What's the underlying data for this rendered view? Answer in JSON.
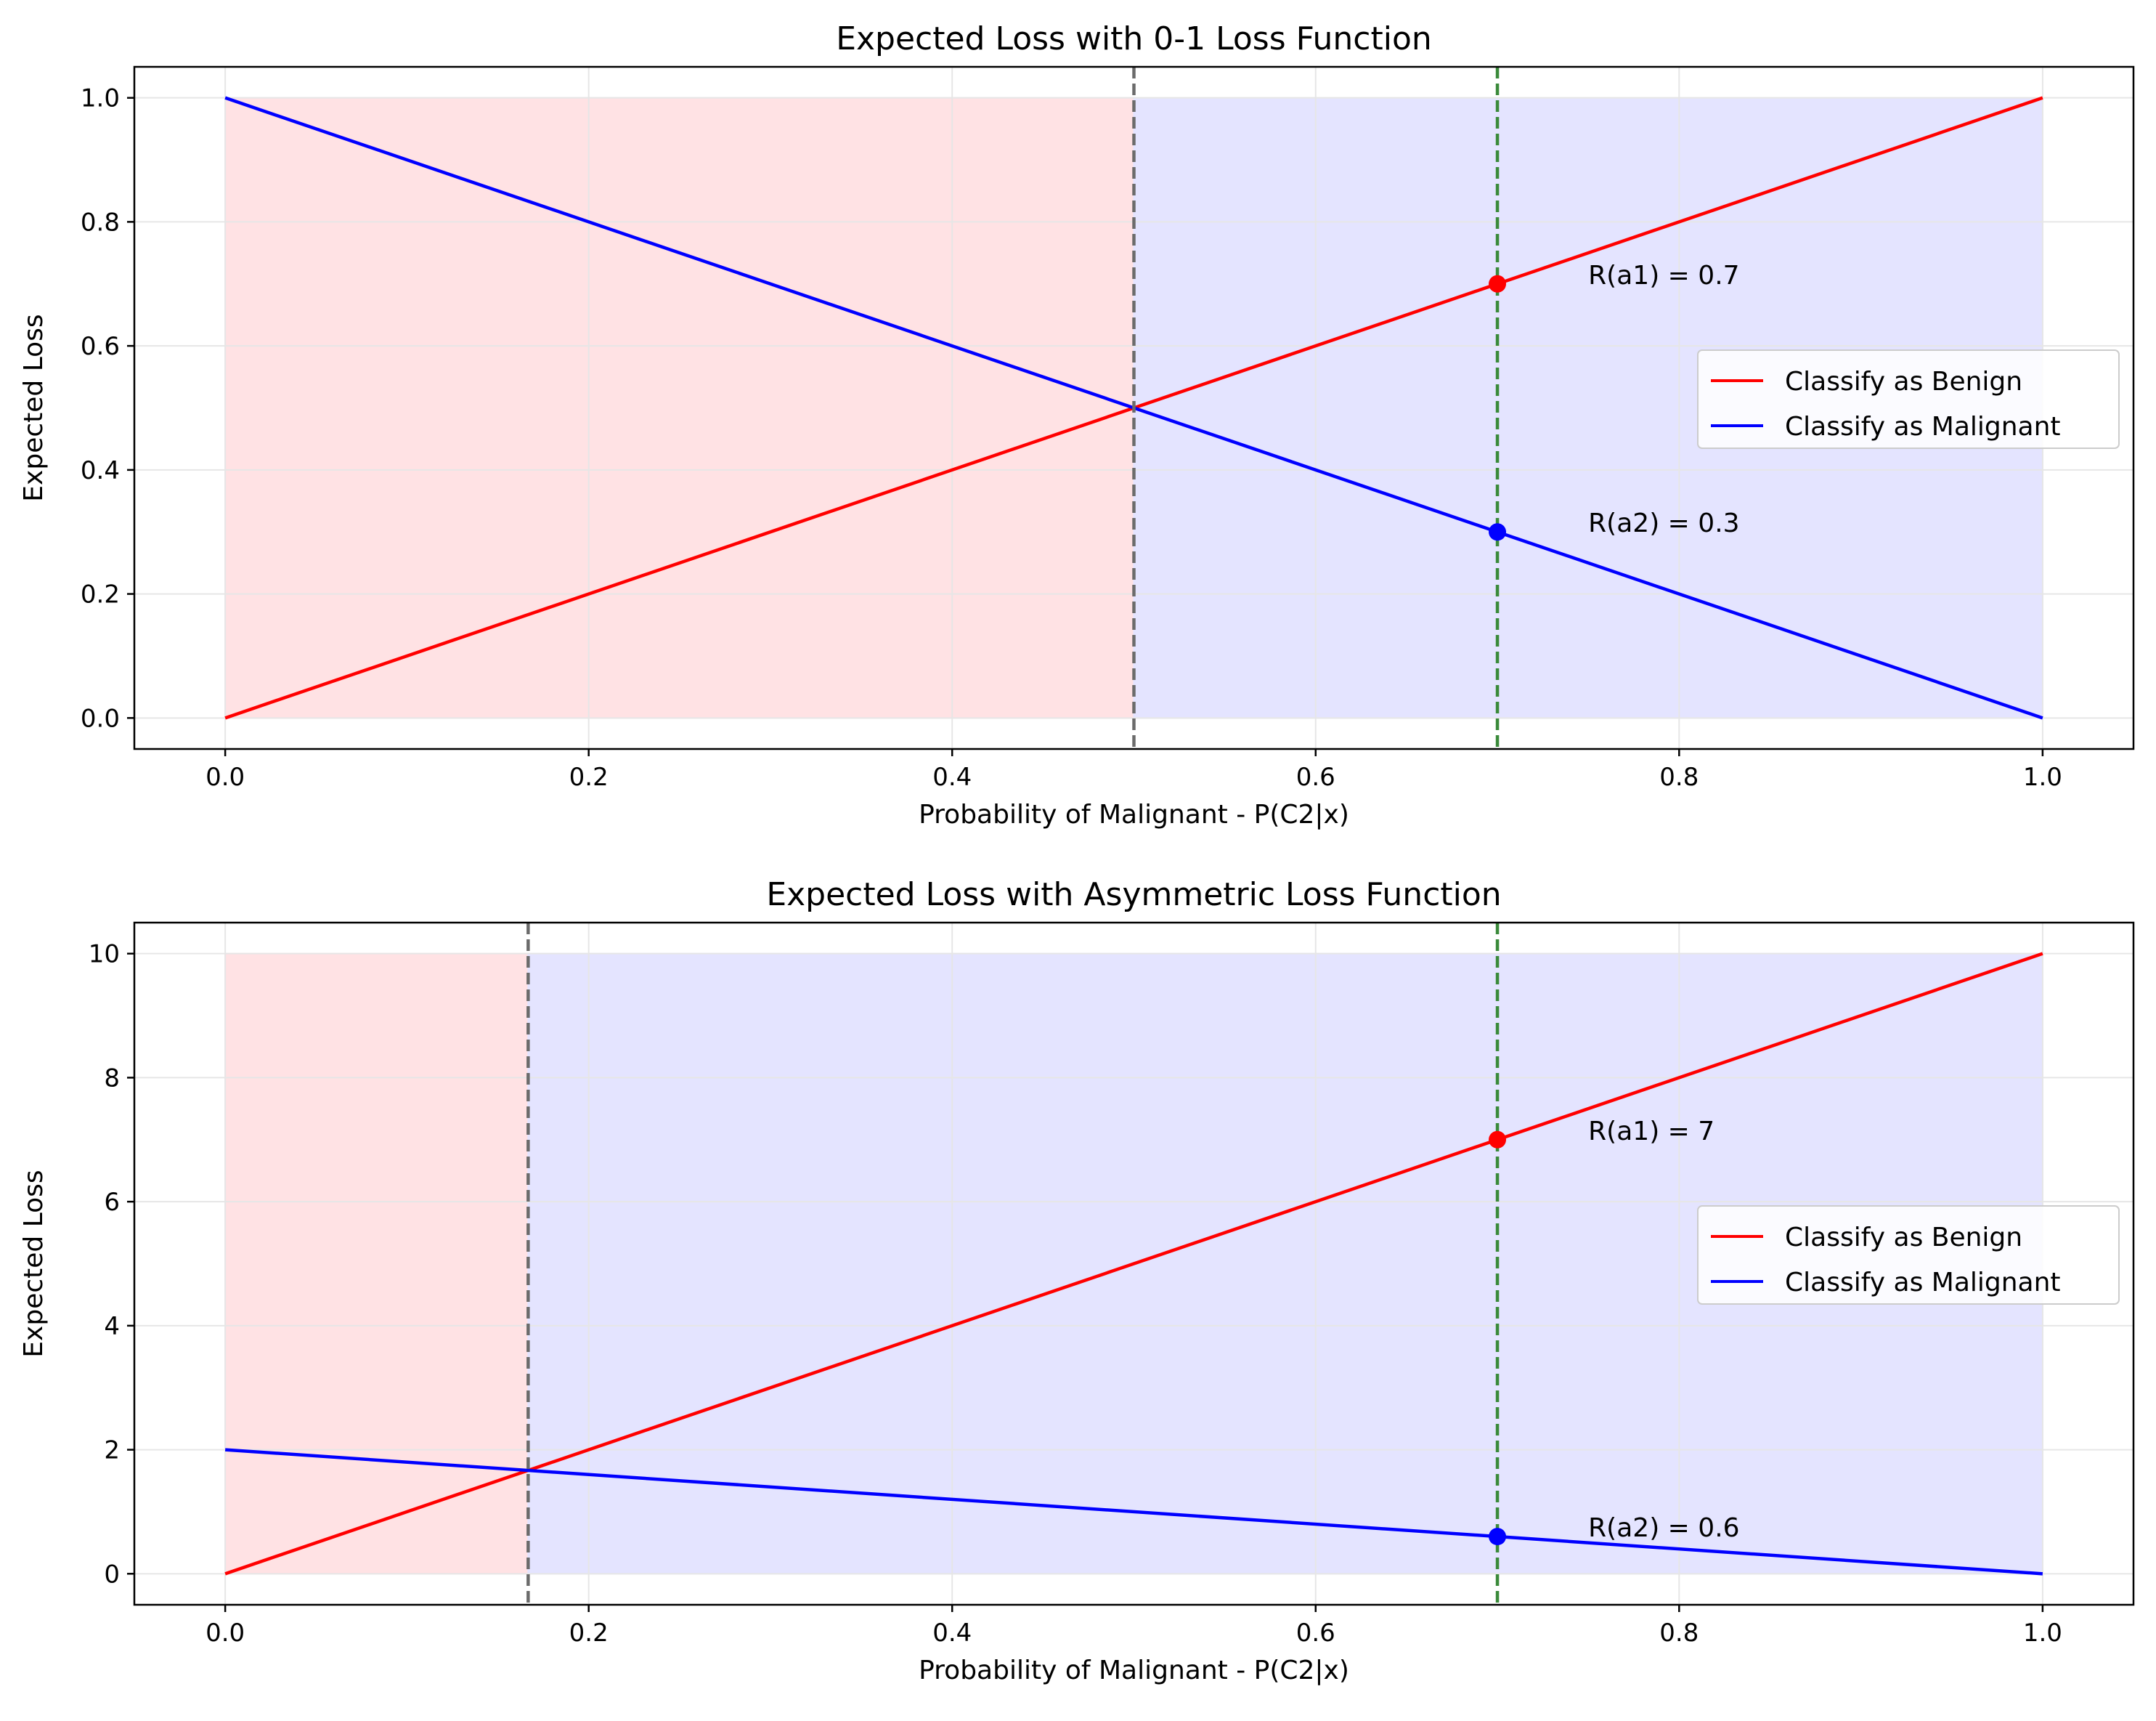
{
  "colors": {
    "benign": "#ff0000",
    "malignant": "#0000ff",
    "region_benign": "#ffe2e4",
    "region_malignant": "#e4e4ff",
    "threshold": "#6b6b6b",
    "current": "#3a8a3a",
    "grid": "#e6e6e6"
  },
  "chart_data": [
    {
      "type": "line",
      "title": "Expected Loss with 0-1 Loss Function",
      "xlabel": "Probability of Malignant - P(C2|x)",
      "ylabel": "Expected Loss",
      "xlim": [
        -0.05,
        1.05
      ],
      "ylim": [
        -0.05,
        1.05
      ],
      "xticks": [
        0.0,
        0.2,
        0.4,
        0.6,
        0.8,
        1.0
      ],
      "xtick_labels": [
        "0.0",
        "0.2",
        "0.4",
        "0.6",
        "0.8",
        "1.0"
      ],
      "yticks": [
        0.0,
        0.2,
        0.4,
        0.6,
        0.8,
        1.0
      ],
      "ytick_labels": [
        "0.0",
        "0.2",
        "0.4",
        "0.6",
        "0.8",
        "1.0"
      ],
      "grid": true,
      "legend_position": "center-right",
      "series": [
        {
          "name": "Classify as Benign",
          "color": "#ff0000",
          "x": [
            0,
            1
          ],
          "y": [
            0,
            1
          ]
        },
        {
          "name": "Classify as Malignant",
          "color": "#0000ff",
          "x": [
            0,
            1
          ],
          "y": [
            1,
            0
          ]
        }
      ],
      "regions": [
        {
          "x0": 0,
          "x1": 0.5,
          "y0": 0,
          "y1": 1,
          "color": "#ffe2e4"
        },
        {
          "x0": 0.5,
          "x1": 1,
          "y0": 0,
          "y1": 1,
          "color": "#e4e4ff"
        }
      ],
      "threshold_x": 0.5,
      "current_x": 0.7,
      "points": [
        {
          "x": 0.7,
          "y": 0.7,
          "color": "#ff0000",
          "label": "R(a1) = 0.7"
        },
        {
          "x": 0.7,
          "y": 0.3,
          "color": "#0000ff",
          "label": "R(a2) = 0.3"
        }
      ]
    },
    {
      "type": "line",
      "title": "Expected Loss with Asymmetric Loss Function",
      "xlabel": "Probability of Malignant - P(C2|x)",
      "ylabel": "Expected Loss",
      "xlim": [
        -0.05,
        1.05
      ],
      "ylim": [
        -0.5,
        10.5
      ],
      "xticks": [
        0.0,
        0.2,
        0.4,
        0.6,
        0.8,
        1.0
      ],
      "xtick_labels": [
        "0.0",
        "0.2",
        "0.4",
        "0.6",
        "0.8",
        "1.0"
      ],
      "yticks": [
        0,
        2,
        4,
        6,
        8,
        10
      ],
      "ytick_labels": [
        "0",
        "2",
        "4",
        "6",
        "8",
        "10"
      ],
      "grid": true,
      "legend_position": "center-right",
      "series": [
        {
          "name": "Classify as Benign",
          "color": "#ff0000",
          "x": [
            0,
            1
          ],
          "y": [
            0,
            10
          ]
        },
        {
          "name": "Classify as Malignant",
          "color": "#0000ff",
          "x": [
            0,
            1
          ],
          "y": [
            2,
            0
          ]
        }
      ],
      "regions": [
        {
          "x0": 0,
          "x1": 0.1667,
          "y0": 0,
          "y1": 10,
          "color": "#ffe2e4"
        },
        {
          "x0": 0.1667,
          "x1": 1,
          "y0": 0,
          "y1": 10,
          "color": "#e4e4ff"
        }
      ],
      "threshold_x": 0.1667,
      "current_x": 0.7,
      "points": [
        {
          "x": 0.7,
          "y": 7,
          "color": "#ff0000",
          "label": "R(a1) = 7"
        },
        {
          "x": 0.7,
          "y": 0.6,
          "color": "#0000ff",
          "label": "R(a2) = 0.6"
        }
      ]
    }
  ]
}
